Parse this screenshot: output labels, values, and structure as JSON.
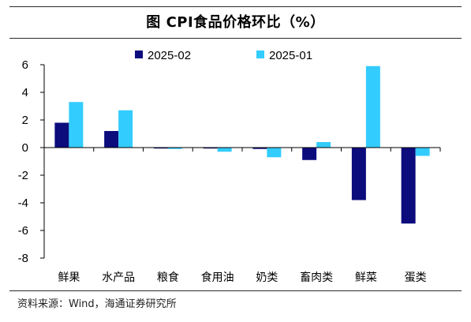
{
  "title": "图  CPI食品价格环比（%）",
  "source": "资料来源：Wind，海通证券研究所",
  "chart_data": {
    "type": "bar",
    "title": "图  CPI食品价格环比（%）",
    "xlabel": "",
    "ylabel": "",
    "categories": [
      "鲜果",
      "水产品",
      "粮食",
      "食用油",
      "奶类",
      "畜肉类",
      "鲜菜",
      "蛋类"
    ],
    "series": [
      {
        "name": "2025-02",
        "color": "#0c0c7d",
        "values": [
          1.8,
          1.2,
          0.0,
          0.0,
          -0.1,
          -0.9,
          -3.8,
          -5.5
        ]
      },
      {
        "name": "2025-01",
        "color": "#33ccff",
        "values": [
          3.3,
          2.7,
          -0.1,
          -0.3,
          -0.7,
          0.4,
          5.9,
          -0.6
        ]
      }
    ],
    "ylim": [
      -8,
      6
    ],
    "yticks": [
      6,
      4,
      2,
      0,
      -2,
      -4,
      -6,
      -8
    ],
    "grid": false,
    "legend_position": "top"
  }
}
